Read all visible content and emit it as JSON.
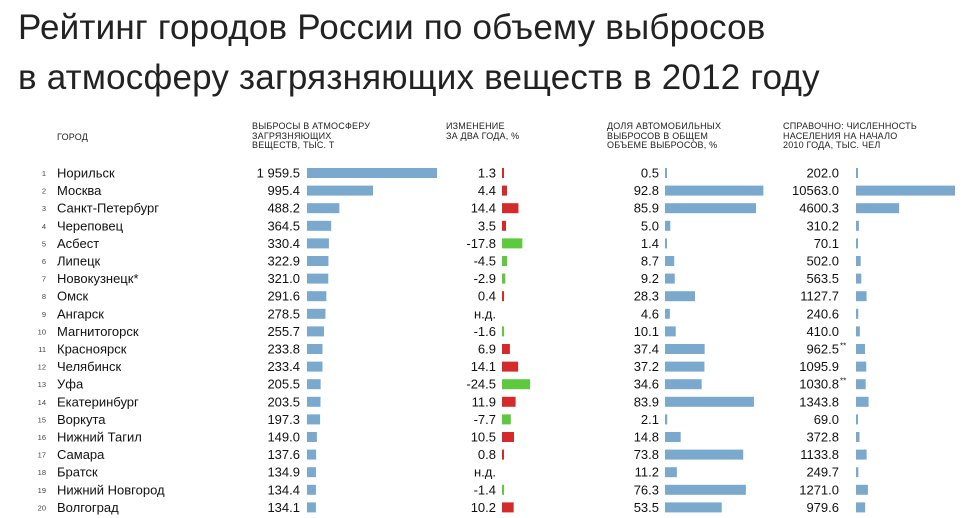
{
  "title_line1": "Рейтинг городов России по объему выбросов",
  "title_line2": "в атмосферу загрязняющих веществ в 2012 году",
  "colors": {
    "bar": "#7aa9cd",
    "increase": "#d42a2a",
    "decrease": "#5cc93f"
  },
  "chart_data": {
    "type": "table",
    "headers": {
      "city": "ГОРОД",
      "emissions": "ВЫБРОСЫ В АТМОСФЕРУ\nЗАГРЯЗНЯЮЩИХ\nВЕЩЕСТВ, ТЫС. Т",
      "change": "ИЗМЕНЕНИЕ\nЗА ДВА ГОДА, %",
      "auto_share": "ДОЛЯ АВТОМОБИЛЬНЫХ\nВЫБРОСОВ В ОБЩЕМ\nОБЪЕМЕ ВЫБРОСОВ, %",
      "population": "СПРАВОЧНО: ЧИСЛЕННОСТЬ\nНАСЕЛЕНИЯ НА НАЧАЛО\n2010 ГОДА, ТЫС. ЧЕЛ"
    },
    "rows": [
      {
        "rank": "1",
        "city": "Норильск",
        "emissions": 1959.5,
        "emissions_label": "1 959.5",
        "change": 1.3,
        "change_label": "1.3",
        "auto_share": 0.5,
        "auto_label": "0.5",
        "population": 202.0,
        "pop_label": "202.0",
        "pop_note": ""
      },
      {
        "rank": "2",
        "city": "Москва",
        "emissions": 995.4,
        "emissions_label": "995.4",
        "change": 4.4,
        "change_label": "4.4",
        "auto_share": 92.8,
        "auto_label": "92.8",
        "population": 10563.0,
        "pop_label": "10563.0",
        "pop_note": ""
      },
      {
        "rank": "3",
        "city": "Санкт-Петербург",
        "emissions": 488.2,
        "emissions_label": "488.2",
        "change": 14.4,
        "change_label": "14.4",
        "auto_share": 85.9,
        "auto_label": "85.9",
        "population": 4600.3,
        "pop_label": "4600.3",
        "pop_note": ""
      },
      {
        "rank": "4",
        "city": "Череповец",
        "emissions": 364.5,
        "emissions_label": "364.5",
        "change": 3.5,
        "change_label": "3.5",
        "auto_share": 5.0,
        "auto_label": "5.0",
        "population": 310.2,
        "pop_label": "310.2",
        "pop_note": ""
      },
      {
        "rank": "5",
        "city": "Асбест",
        "emissions": 330.4,
        "emissions_label": "330.4",
        "change": -17.8,
        "change_label": "-17.8",
        "auto_share": 1.4,
        "auto_label": "1.4",
        "population": 70.1,
        "pop_label": "70.1",
        "pop_note": ""
      },
      {
        "rank": "6",
        "city": "Липецк",
        "emissions": 322.9,
        "emissions_label": "322.9",
        "change": -4.5,
        "change_label": "-4.5",
        "auto_share": 8.7,
        "auto_label": "8.7",
        "population": 502.0,
        "pop_label": "502.0",
        "pop_note": ""
      },
      {
        "rank": "7",
        "city": "Новокузнецк*",
        "emissions": 321.0,
        "emissions_label": "321.0",
        "change": -2.9,
        "change_label": "-2.9",
        "auto_share": 9.2,
        "auto_label": "9.2",
        "population": 563.5,
        "pop_label": "563.5",
        "pop_note": ""
      },
      {
        "rank": "8",
        "city": "Омск",
        "emissions": 291.6,
        "emissions_label": "291.6",
        "change": 0.4,
        "change_label": "0.4",
        "auto_share": 28.3,
        "auto_label": "28.3",
        "population": 1127.7,
        "pop_label": "1127.7",
        "pop_note": ""
      },
      {
        "rank": "9",
        "city": "Ангарск",
        "emissions": 278.5,
        "emissions_label": "278.5",
        "change": null,
        "change_label": "н.д.",
        "auto_share": 4.6,
        "auto_label": "4.6",
        "population": 240.6,
        "pop_label": "240.6",
        "pop_note": ""
      },
      {
        "rank": "10",
        "city": "Магнитогорск",
        "emissions": 255.7,
        "emissions_label": "255.7",
        "change": -1.6,
        "change_label": "-1.6",
        "auto_share": 10.1,
        "auto_label": "10.1",
        "population": 410.0,
        "pop_label": "410.0",
        "pop_note": ""
      },
      {
        "rank": "11",
        "city": "Красноярск",
        "emissions": 233.8,
        "emissions_label": "233.8",
        "change": 6.9,
        "change_label": "6.9",
        "auto_share": 37.4,
        "auto_label": "37.4",
        "population": 962.5,
        "pop_label": "962.5",
        "pop_note": "**"
      },
      {
        "rank": "12",
        "city": "Челябинск",
        "emissions": 233.4,
        "emissions_label": "233.4",
        "change": 14.1,
        "change_label": "14.1",
        "auto_share": 37.2,
        "auto_label": "37.2",
        "population": 1095.9,
        "pop_label": "1095.9",
        "pop_note": ""
      },
      {
        "rank": "13",
        "city": "Уфа",
        "emissions": 205.5,
        "emissions_label": "205.5",
        "change": -24.5,
        "change_label": "-24.5",
        "auto_share": 34.6,
        "auto_label": "34.6",
        "population": 1030.8,
        "pop_label": "1030.8",
        "pop_note": "**"
      },
      {
        "rank": "14",
        "city": "Екатеринбург",
        "emissions": 203.5,
        "emissions_label": "203.5",
        "change": 11.9,
        "change_label": "11.9",
        "auto_share": 83.9,
        "auto_label": "83.9",
        "population": 1343.8,
        "pop_label": "1343.8",
        "pop_note": ""
      },
      {
        "rank": "15",
        "city": "Воркута",
        "emissions": 197.3,
        "emissions_label": "197.3",
        "change": -7.7,
        "change_label": "-7.7",
        "auto_share": 2.1,
        "auto_label": "2.1",
        "population": 69.0,
        "pop_label": "69.0",
        "pop_note": ""
      },
      {
        "rank": "16",
        "city": "Нижний Тагил",
        "emissions": 149.0,
        "emissions_label": "149.0",
        "change": 10.5,
        "change_label": "10.5",
        "auto_share": 14.8,
        "auto_label": "14.8",
        "population": 372.8,
        "pop_label": "372.8",
        "pop_note": ""
      },
      {
        "rank": "17",
        "city": "Самара",
        "emissions": 137.6,
        "emissions_label": "137.6",
        "change": 0.8,
        "change_label": "0.8",
        "auto_share": 73.8,
        "auto_label": "73.8",
        "population": 1133.8,
        "pop_label": "1133.8",
        "pop_note": ""
      },
      {
        "rank": "18",
        "city": "Братск",
        "emissions": 134.9,
        "emissions_label": "134.9",
        "change": null,
        "change_label": "н.д.",
        "auto_share": 11.2,
        "auto_label": "11.2",
        "population": 249.7,
        "pop_label": "249.7",
        "pop_note": ""
      },
      {
        "rank": "19",
        "city": "Нижний Новгород",
        "emissions": 134.4,
        "emissions_label": "134.4",
        "change": -1.4,
        "change_label": "-1.4",
        "auto_share": 76.3,
        "auto_label": "76.3",
        "population": 1271.0,
        "pop_label": "1271.0",
        "pop_note": ""
      },
      {
        "rank": "20",
        "city": "Волгоград",
        "emissions": 134.1,
        "emissions_label": "134.1",
        "change": 10.2,
        "change_label": "10.2",
        "auto_share": 53.5,
        "auto_label": "53.5",
        "population": 979.6,
        "pop_label": "979.6",
        "pop_note": ""
      }
    ]
  }
}
